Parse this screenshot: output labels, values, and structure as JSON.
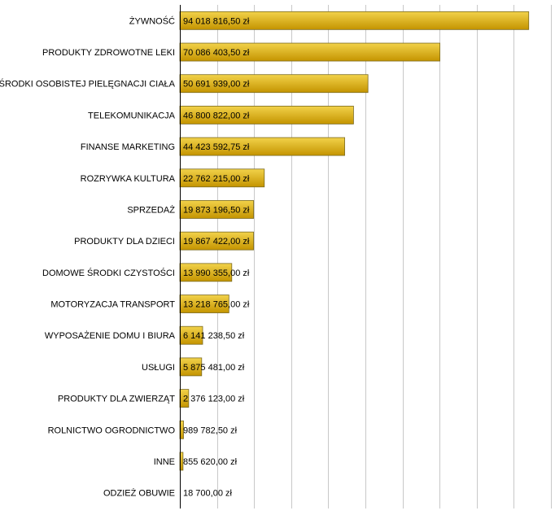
{
  "chart_data": {
    "type": "bar",
    "orientation": "horizontal",
    "categories": [
      "ŻYWNOŚĆ",
      "PRODUKTY ZDROWOTNE LEKI",
      "ŚRODKI OSOBISTEJ PIELĘGNACJI CIAŁA",
      "TELEKOMUNIKACJA",
      "FINANSE MARKETING",
      "ROZRYWKA KULTURA",
      "SPRZEDAŻ",
      "PRODUKTY DLA DZIECI",
      "DOMOWE ŚRODKI CZYSTOŚCI",
      "MOTORYZACJA TRANSPORT",
      "WYPOSAŻENIE DOMU I BIURA",
      "USŁUGI",
      "PRODUKTY DLA ZWIERZĄT",
      "ROLNICTWO OGRODNICTWO",
      "INNE",
      "ODZIEŻ OBUWIE"
    ],
    "values": [
      94018816.5,
      70086403.5,
      50691939.0,
      46800822.0,
      44423592.75,
      22762215.0,
      19873196.5,
      19867422.0,
      13990355.0,
      13218765.0,
      6141238.5,
      5875481.0,
      2376123.0,
      989782.5,
      855620.0,
      18700.0
    ],
    "data_labels": [
      "94 018 816,50 zł",
      "70 086 403,50 zł",
      "50 691 939,00 zł",
      "46 800 822,00 zł",
      "44 423 592,75 zł",
      "22 762 215,00 zł",
      "19 873 196,50 zł",
      "19 867 422,00 zł",
      "13 990 355,00 zł",
      "13 218 765,00 zł",
      "6 141 238,50 zł",
      "5 875 481,00 zł",
      "2 376 123,00 zł",
      "989 782,50 zł",
      "855 620,00 zł",
      "18 700,00 zł"
    ],
    "xlim": [
      0,
      100000000
    ],
    "grid": true,
    "legend": "none",
    "colors": {
      "bar_fill": "#e0b000",
      "bar_light": "#f2d24a",
      "bar_dark": "#c49400",
      "bar_stroke": "#7a6a20",
      "grid": "#c8c8c8",
      "axis": "#000000"
    }
  }
}
